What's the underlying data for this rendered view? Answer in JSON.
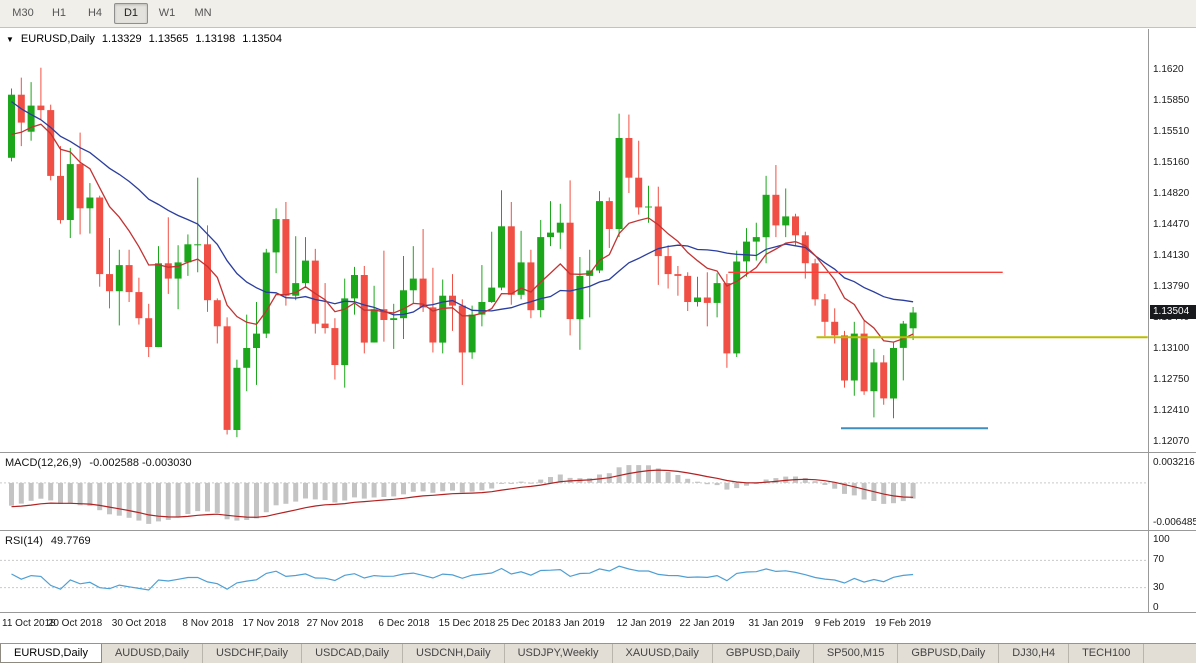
{
  "icons": {
    "dropdown": "▼"
  },
  "toolbar": {
    "timeframes": [
      {
        "label": "M30",
        "active": false
      },
      {
        "label": "H1",
        "active": false
      },
      {
        "label": "H4",
        "active": false
      },
      {
        "label": "D1",
        "active": true
      },
      {
        "label": "W1",
        "active": false
      },
      {
        "label": "MN",
        "active": false
      }
    ]
  },
  "chart_data": {
    "type": "candlestick",
    "symbol_label": "EURUSD,Daily",
    "ohlc_display": {
      "open": "1.13329",
      "high": "1.13565",
      "low": "1.13198",
      "close": "1.13504"
    },
    "price_badge": "1.13504",
    "price_axis": [
      {
        "text": "1.1620",
        "value": 1.162
      },
      {
        "text": "1.15850",
        "value": 1.1585
      },
      {
        "text": "1.15510",
        "value": 1.1551
      },
      {
        "text": "1.15160",
        "value": 1.1516
      },
      {
        "text": "1.14820",
        "value": 1.1482
      },
      {
        "text": "1.14470",
        "value": 1.1447
      },
      {
        "text": "1.14130",
        "value": 1.1413
      },
      {
        "text": "1.13790",
        "value": 1.1379
      },
      {
        "text": "1.13440",
        "value": 1.1344
      },
      {
        "text": "1.13100",
        "value": 1.131
      },
      {
        "text": "1.12750",
        "value": 1.1275
      },
      {
        "text": "1.12410",
        "value": 1.1241
      },
      {
        "text": "1.12070",
        "value": 1.1207
      }
    ],
    "x_labels": [
      {
        "text": "11 Oct 2018",
        "i": 0
      },
      {
        "text": "20 Oct 2018",
        "i": 6.5
      },
      {
        "text": "30 Oct 2018",
        "i": 13
      },
      {
        "text": "8 Nov 2018",
        "i": 20
      },
      {
        "text": "17 Nov 2018",
        "i": 26.5
      },
      {
        "text": "27 Nov 2018",
        "i": 33
      },
      {
        "text": "6 Dec 2018",
        "i": 40
      },
      {
        "text": "15 Dec 2018",
        "i": 46.5
      },
      {
        "text": "25 Dec 2018",
        "i": 52.5
      },
      {
        "text": "3 Jan 2019",
        "i": 58
      },
      {
        "text": "12 Jan 2019",
        "i": 64.5
      },
      {
        "text": "22 Jan 2019",
        "i": 71
      },
      {
        "text": "31 Jan 2019",
        "i": 78
      },
      {
        "text": "9 Feb 2019",
        "i": 84.5
      },
      {
        "text": "19 Feb 2019",
        "i": 91
      }
    ],
    "warmup_closes": [
      1.168,
      1.169,
      1.17,
      1.171,
      1.1718,
      1.1724,
      1.1728,
      1.172,
      1.1708,
      1.1692,
      1.1672,
      1.165,
      1.1628,
      1.1606,
      1.1585,
      1.1566,
      1.155,
      1.1538,
      1.153,
      1.1526,
      1.1524,
      1.1522,
      1.152,
      1.1518,
      1.1519,
      1.1522
    ],
    "candles": [
      [
        1.1522,
        1.1599,
        1.1518,
        1.1592
      ],
      [
        1.1592,
        1.1611,
        1.1535,
        1.1561
      ],
      [
        1.1551,
        1.1606,
        1.1541,
        1.158
      ],
      [
        1.158,
        1.1622,
        1.1565,
        1.1575
      ],
      [
        1.1575,
        1.1581,
        1.1497,
        1.1502
      ],
      [
        1.1502,
        1.1535,
        1.1449,
        1.1453
      ],
      [
        1.1453,
        1.1533,
        1.1433,
        1.1515
      ],
      [
        1.1515,
        1.155,
        1.1437,
        1.1466
      ],
      [
        1.1466,
        1.1494,
        1.1438,
        1.1478
      ],
      [
        1.1478,
        1.148,
        1.1379,
        1.1393
      ],
      [
        1.1393,
        1.1433,
        1.1355,
        1.1374
      ],
      [
        1.1374,
        1.142,
        1.1336,
        1.1403
      ],
      [
        1.1403,
        1.142,
        1.1362,
        1.1373
      ],
      [
        1.1373,
        1.1389,
        1.1337,
        1.1344
      ],
      [
        1.1344,
        1.136,
        1.1301,
        1.1312
      ],
      [
        1.1312,
        1.1424,
        1.1312,
        1.1405
      ],
      [
        1.1405,
        1.1456,
        1.1371,
        1.1388
      ],
      [
        1.1388,
        1.1425,
        1.1354,
        1.1406
      ],
      [
        1.1406,
        1.1437,
        1.1391,
        1.1426
      ],
      [
        1.1426,
        1.15,
        1.1395,
        1.1426
      ],
      [
        1.1426,
        1.1447,
        1.1351,
        1.1364
      ],
      [
        1.1364,
        1.1366,
        1.1316,
        1.1335
      ],
      [
        1.1335,
        1.1345,
        1.1215,
        1.122
      ],
      [
        1.122,
        1.1298,
        1.1212,
        1.1289
      ],
      [
        1.1289,
        1.1348,
        1.1263,
        1.1311
      ],
      [
        1.1311,
        1.1362,
        1.127,
        1.1327
      ],
      [
        1.1327,
        1.1421,
        1.1322,
        1.1417
      ],
      [
        1.1417,
        1.1466,
        1.1394,
        1.1454
      ],
      [
        1.1454,
        1.1473,
        1.1358,
        1.1369
      ],
      [
        1.1369,
        1.1435,
        1.1364,
        1.1383
      ],
      [
        1.1383,
        1.1434,
        1.1378,
        1.1408
      ],
      [
        1.1408,
        1.1421,
        1.1327,
        1.1338
      ],
      [
        1.1338,
        1.1383,
        1.1327,
        1.1333
      ],
      [
        1.1333,
        1.1344,
        1.1276,
        1.1292
      ],
      [
        1.1292,
        1.1388,
        1.1267,
        1.1366
      ],
      [
        1.1366,
        1.1401,
        1.1348,
        1.1392
      ],
      [
        1.1392,
        1.1402,
        1.1305,
        1.1317
      ],
      [
        1.1317,
        1.138,
        1.1317,
        1.1354
      ],
      [
        1.1354,
        1.1419,
        1.1318,
        1.1342
      ],
      [
        1.1342,
        1.136,
        1.131,
        1.1344
      ],
      [
        1.1344,
        1.1413,
        1.1321,
        1.1375
      ],
      [
        1.1375,
        1.1424,
        1.136,
        1.1388
      ],
      [
        1.1388,
        1.1443,
        1.1351,
        1.1356
      ],
      [
        1.1356,
        1.14,
        1.1306,
        1.1317
      ],
      [
        1.1317,
        1.1387,
        1.1305,
        1.1369
      ],
      [
        1.1369,
        1.1393,
        1.133,
        1.1358
      ],
      [
        1.1358,
        1.1365,
        1.127,
        1.1306
      ],
      [
        1.1306,
        1.1358,
        1.1299,
        1.1348
      ],
      [
        1.1348,
        1.1403,
        1.1335,
        1.1362
      ],
      [
        1.1362,
        1.144,
        1.1361,
        1.1378
      ],
      [
        1.1378,
        1.1486,
        1.1375,
        1.1446
      ],
      [
        1.1446,
        1.1473,
        1.1359,
        1.137
      ],
      [
        1.137,
        1.1441,
        1.1365,
        1.1406
      ],
      [
        1.1406,
        1.142,
        1.1344,
        1.1353
      ],
      [
        1.1353,
        1.1453,
        1.1345,
        1.1434
      ],
      [
        1.1434,
        1.1474,
        1.1424,
        1.1439
      ],
      [
        1.1439,
        1.1471,
        1.1421,
        1.145
      ],
      [
        1.145,
        1.1497,
        1.1325,
        1.1343
      ],
      [
        1.1343,
        1.1412,
        1.1309,
        1.1391
      ],
      [
        1.1391,
        1.142,
        1.1345,
        1.1397
      ],
      [
        1.1397,
        1.1485,
        1.1394,
        1.1474
      ],
      [
        1.1474,
        1.1478,
        1.1422,
        1.1443
      ],
      [
        1.1443,
        1.1571,
        1.1434,
        1.1544
      ],
      [
        1.1544,
        1.157,
        1.1483,
        1.15
      ],
      [
        1.15,
        1.1541,
        1.1459,
        1.1467
      ],
      [
        1.1467,
        1.1491,
        1.145,
        1.1468
      ],
      [
        1.1468,
        1.149,
        1.1381,
        1.1413
      ],
      [
        1.1413,
        1.1425,
        1.1377,
        1.1393
      ],
      [
        1.1393,
        1.1402,
        1.1369,
        1.1391
      ],
      [
        1.1391,
        1.1395,
        1.1352,
        1.1362
      ],
      [
        1.1362,
        1.139,
        1.1357,
        1.1367
      ],
      [
        1.1367,
        1.1395,
        1.1335,
        1.1361
      ],
      [
        1.1361,
        1.1394,
        1.1345,
        1.1383
      ],
      [
        1.1383,
        1.1393,
        1.1289,
        1.1305
      ],
      [
        1.1305,
        1.1419,
        1.1301,
        1.1407
      ],
      [
        1.1407,
        1.1444,
        1.139,
        1.1429
      ],
      [
        1.1429,
        1.145,
        1.1408,
        1.1434
      ],
      [
        1.1434,
        1.1502,
        1.1405,
        1.1481
      ],
      [
        1.1481,
        1.1514,
        1.1434,
        1.1447
      ],
      [
        1.1447,
        1.1488,
        1.1434,
        1.1457
      ],
      [
        1.1457,
        1.146,
        1.1424,
        1.1436
      ],
      [
        1.1436,
        1.144,
        1.1388,
        1.1405
      ],
      [
        1.1405,
        1.141,
        1.1358,
        1.1365
      ],
      [
        1.1365,
        1.1371,
        1.1324,
        1.134
      ],
      [
        1.134,
        1.1355,
        1.1316,
        1.1325
      ],
      [
        1.1325,
        1.133,
        1.1267,
        1.1275
      ],
      [
        1.1275,
        1.134,
        1.1258,
        1.1327
      ],
      [
        1.1327,
        1.1341,
        1.1259,
        1.1263
      ],
      [
        1.1263,
        1.131,
        1.1234,
        1.1295
      ],
      [
        1.1295,
        1.1303,
        1.1248,
        1.1255
      ],
      [
        1.1255,
        1.1317,
        1.1233,
        1.1311
      ],
      [
        1.1311,
        1.1341,
        1.1275,
        1.1338
      ],
      [
        1.13329,
        1.13565,
        1.13198,
        1.13504
      ]
    ],
    "overlays": {
      "ma_fast_period": 10,
      "ma_slow_period": 20
    },
    "hlines": [
      {
        "price": 1.1395,
        "i1": 73.5,
        "i2": 101.5,
        "color": "#fb3e38",
        "w": 1.4
      },
      {
        "price": 1.1323,
        "i1": 82.5,
        "i2": 116.3,
        "color": "#b9bd00",
        "w": 2
      },
      {
        "price": 1.1222,
        "i1": 85,
        "i2": 100,
        "color": "#3e8fc0",
        "w": 2
      }
    ],
    "indicators": {
      "macd": {
        "label": "MACD(12,26,9)",
        "values": "-0.002588 -0.003030",
        "fast": 12,
        "slow": 26,
        "signal_period": 9,
        "axis_labels": [
          {
            "text": "0.003216",
            "value": 0.003216
          },
          {
            "text": "-0.006485",
            "value": -0.006485
          }
        ]
      },
      "rsi": {
        "label": "RSI(14)",
        "value": "49.7769",
        "period": 14,
        "levels": [
          70,
          30
        ],
        "axis_labels": [
          {
            "text": "100",
            "value": 100
          },
          {
            "text": "70",
            "value": 70
          },
          {
            "text": "30",
            "value": 30
          },
          {
            "text": "0",
            "value": 0
          }
        ]
      }
    }
  },
  "tabs": [
    {
      "label": "EURUSD,Daily",
      "active": true
    },
    {
      "label": "AUDUSD,Daily",
      "active": false
    },
    {
      "label": "USDCHF,Daily",
      "active": false
    },
    {
      "label": "USDCAD,Daily",
      "active": false
    },
    {
      "label": "USDCNH,Daily",
      "active": false
    },
    {
      "label": "USDJPY,Weekly",
      "active": false
    },
    {
      "label": "XAUUSD,Daily",
      "active": false
    },
    {
      "label": "GBPUSD,Daily",
      "active": false
    },
    {
      "label": "SP500,M15",
      "active": false
    },
    {
      "label": "GBPUSD,Daily",
      "active": false
    },
    {
      "label": "DJ30,H4",
      "active": false
    },
    {
      "label": "TECH100",
      "active": false
    }
  ],
  "colors": {
    "bull": "#1ca61c",
    "bear": "#ef4f44",
    "ma_fast": "#c23434",
    "ma_slow": "#2b3e9e",
    "macd_hist": "#c4c4c4",
    "macd_signal": "#b22222",
    "rsi_line": "#4f9fd4",
    "level_dotted": "#c9c9c9",
    "separator": "#999999"
  }
}
